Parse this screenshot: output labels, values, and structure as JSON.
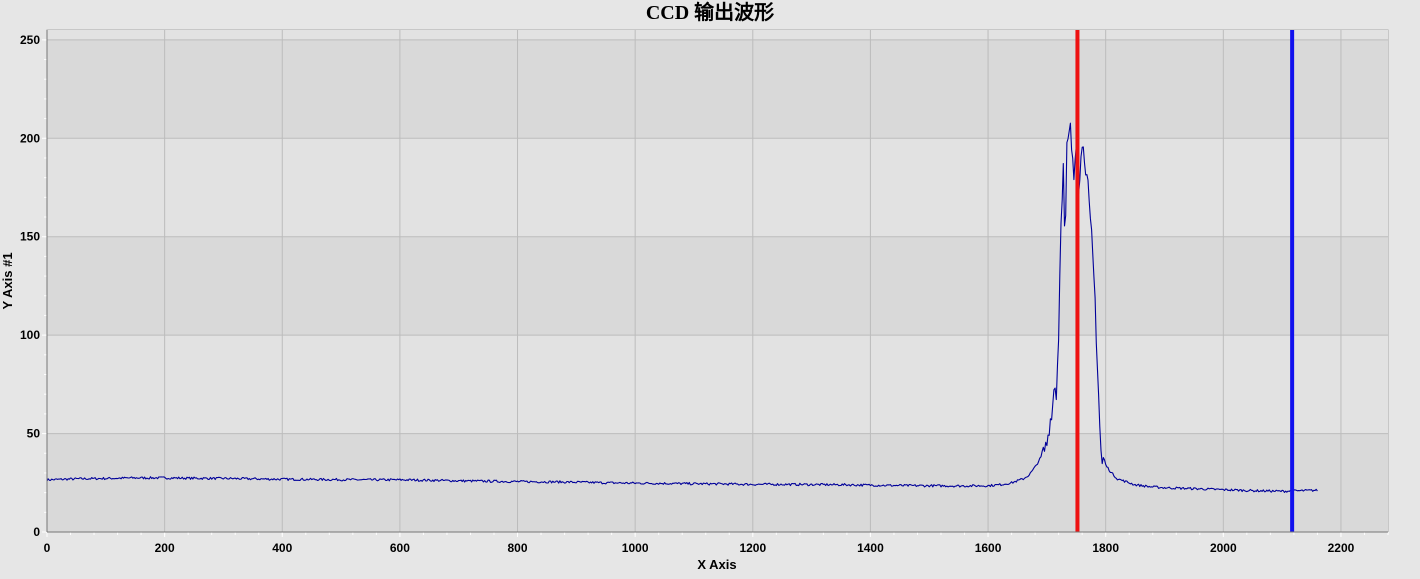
{
  "chart_data": {
    "type": "line",
    "title": "CCD 输出波形",
    "xlabel": "X Axis",
    "ylabel": "Y Axis #1",
    "xlim": [
      0,
      2280
    ],
    "ylim": [
      0,
      255
    ],
    "x_ticks": [
      0,
      200,
      400,
      600,
      800,
      1000,
      1200,
      1400,
      1600,
      1800,
      2000,
      2200
    ],
    "y_ticks": [
      0,
      50,
      100,
      150,
      200,
      250
    ],
    "grid": true,
    "series": [
      {
        "color": "#000099",
        "x": [
          0,
          50,
          100,
          150,
          200,
          250,
          300,
          350,
          400,
          450,
          500,
          550,
          600,
          650,
          700,
          750,
          800,
          850,
          900,
          950,
          1000,
          1050,
          1100,
          1150,
          1200,
          1250,
          1300,
          1350,
          1400,
          1450,
          1500,
          1550,
          1600,
          1620,
          1640,
          1660,
          1670,
          1680,
          1690,
          1695,
          1700,
          1705,
          1710,
          1713,
          1716,
          1720,
          1724,
          1728,
          1731,
          1734,
          1737,
          1740,
          1743,
          1746,
          1750,
          1754,
          1758,
          1762,
          1766,
          1770,
          1773,
          1776,
          1779,
          1782,
          1785,
          1788,
          1791,
          1794,
          1797,
          1800,
          1805,
          1810,
          1820,
          1830,
          1850,
          1875,
          1900,
          1950,
          2000,
          2050,
          2100,
          2160
        ],
        "y": [
          26.5,
          27,
          27.2,
          27.5,
          27.5,
          27.3,
          27.2,
          27,
          26.8,
          26.7,
          26.6,
          26.5,
          26.5,
          26.3,
          26,
          25.8,
          25.6,
          25.5,
          25.3,
          25,
          24.8,
          24.7,
          24.5,
          24.4,
          24.2,
          24.2,
          24.1,
          24,
          23.8,
          23.6,
          23.5,
          23.4,
          23.5,
          24,
          25,
          27,
          29,
          33,
          38,
          41,
          45,
          55,
          65,
          76,
          70,
          100,
          160,
          185,
          140,
          195,
          200,
          205,
          190,
          180,
          200,
          175,
          190,
          198,
          185,
          175,
          160,
          150,
          135,
          118,
          90,
          70,
          45,
          34,
          38,
          34,
          32,
          30,
          27,
          26,
          24,
          23,
          22.5,
          22,
          21.5,
          21,
          20.7,
          21.2
        ]
      }
    ],
    "markers": [
      {
        "x": 1752,
        "color": "#ee1111"
      },
      {
        "x": 2117,
        "color": "#1111ee"
      }
    ]
  }
}
